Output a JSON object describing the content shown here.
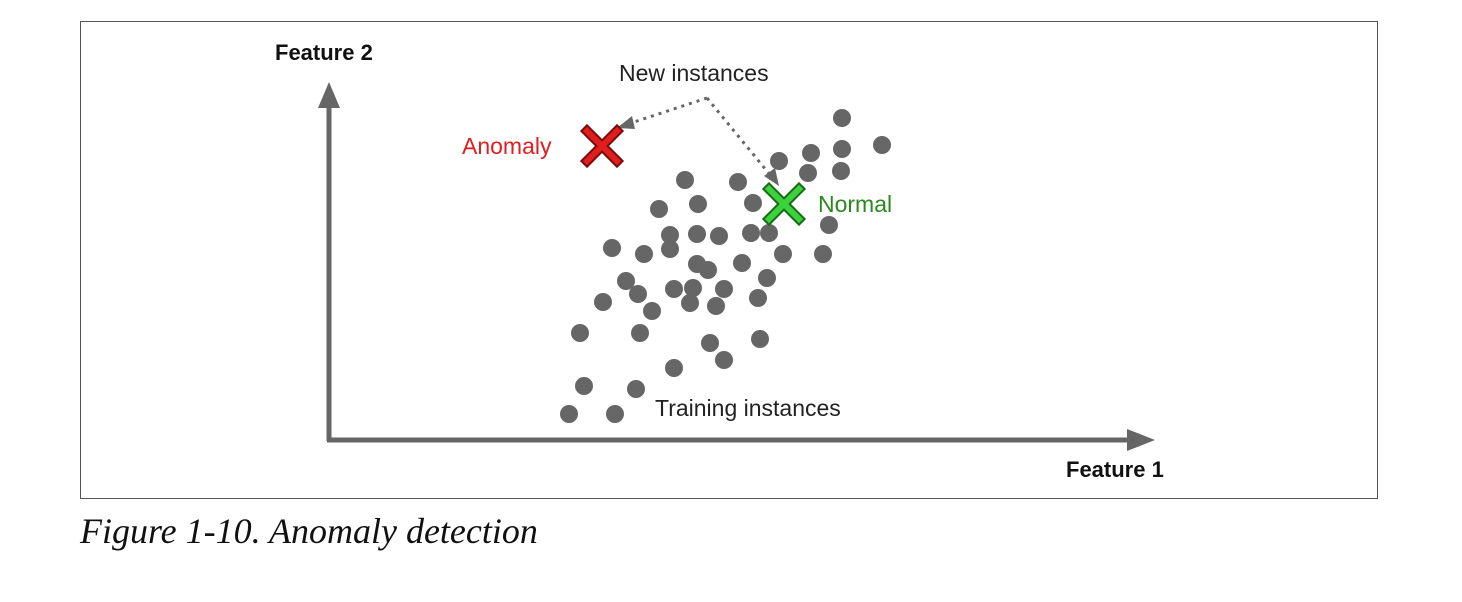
{
  "axes": {
    "x_label": "Feature 1",
    "y_label": "Feature 2"
  },
  "labels": {
    "new_instances": "New instances",
    "anomaly": "Anomaly",
    "normal": "Normal",
    "training_instances": "Training instances"
  },
  "caption": "Figure 1-10. Anomaly detection",
  "colors": {
    "point": "#666666",
    "axis": "#666666",
    "anomaly": "#e01e1e",
    "anomaly_stroke": "#7a0a0a",
    "normal": "#3bd33b",
    "normal_text": "#2a8a1e",
    "normal_stroke": "#1a6a1a"
  }
}
